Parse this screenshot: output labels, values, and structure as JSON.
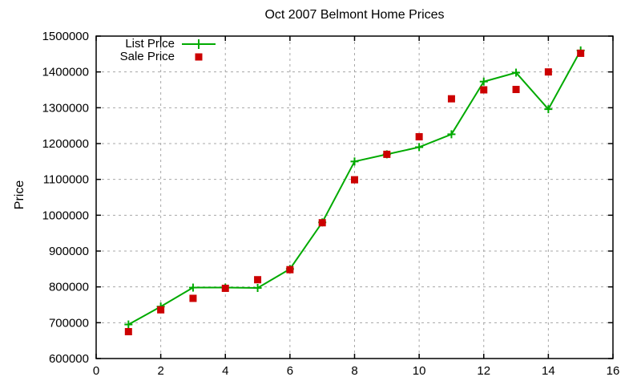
{
  "chart_data": {
    "type": "line",
    "title": "Oct 2007 Belmont Home Prices",
    "xlabel": "",
    "ylabel": "Price",
    "xlim": [
      0,
      16
    ],
    "ylim": [
      600000,
      1500000
    ],
    "x_ticks": [
      0,
      2,
      4,
      6,
      8,
      10,
      12,
      14,
      16
    ],
    "y_ticks": [
      600000,
      700000,
      800000,
      900000,
      1000000,
      1100000,
      1200000,
      1300000,
      1400000,
      1500000
    ],
    "grid": true,
    "legend_position": "top-left-inside",
    "x": [
      1,
      2,
      3,
      4,
      5,
      6,
      7,
      8,
      9,
      10,
      11,
      12,
      13,
      14,
      15
    ],
    "series": [
      {
        "name": "List Price",
        "marker": "plus",
        "line": true,
        "color": "#00aa00",
        "values": [
          695000,
          745000,
          798000,
          798000,
          797000,
          850000,
          980000,
          1150000,
          1170000,
          1190000,
          1226000,
          1373000,
          1398000,
          1296000,
          1460000
        ]
      },
      {
        "name": "Sale Price",
        "marker": "square",
        "line": false,
        "color": "#cc0000",
        "values": [
          675000,
          736000,
          768000,
          796000,
          820000,
          848000,
          979000,
          1099000,
          1170000,
          1219000,
          1325000,
          1350000,
          1351000,
          1400000,
          1452000
        ]
      }
    ],
    "colors": {
      "grid": "#a8a8a8",
      "axis": "#000000",
      "background": "#ffffff"
    }
  }
}
